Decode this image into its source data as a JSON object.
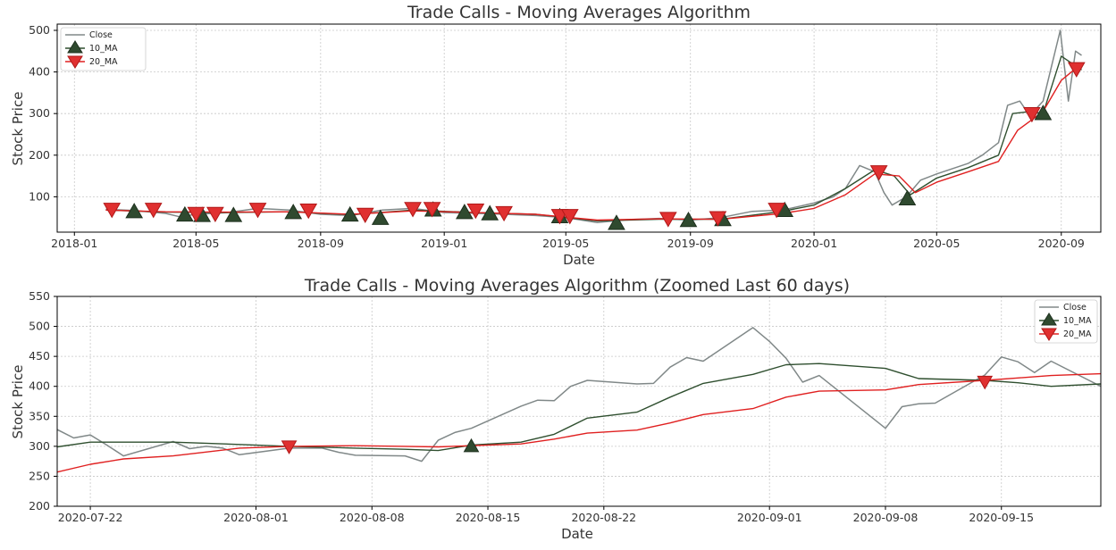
{
  "chart_data": [
    {
      "type": "line",
      "title": "Trade Calls - Moving Averages Algorithm",
      "xlabel": "Date",
      "ylabel": "Stock Price",
      "xlim": [
        "2017-12-15",
        "2020-10-10"
      ],
      "ylim": [
        15,
        515
      ],
      "x_ticks": [
        "2018-01",
        "2018-05",
        "2018-09",
        "2019-01",
        "2019-05",
        "2019-09",
        "2020-01",
        "2020-05",
        "2020-09"
      ],
      "y_ticks": [
        100,
        200,
        300,
        400,
        500
      ],
      "grid": true,
      "legend": "top-left",
      "colors": {
        "close": "#808888",
        "ma10": "#2f4f2f",
        "ma20": "#e02020",
        "buy_marker": "#2f4a2f",
        "sell_marker": "#e03030"
      },
      "series": [
        {
          "name": "Close",
          "x": [
            "2018-02-01",
            "2018-03-01",
            "2018-04-01",
            "2018-04-15",
            "2018-05-01",
            "2018-06-01",
            "2018-07-01",
            "2018-08-01",
            "2018-09-01",
            "2018-10-01",
            "2018-11-01",
            "2018-12-01",
            "2019-01-01",
            "2019-02-01",
            "2019-03-01",
            "2019-04-01",
            "2019-05-01",
            "2019-06-01",
            "2019-07-01",
            "2019-08-01",
            "2019-09-01",
            "2019-10-01",
            "2019-11-01",
            "2019-12-01",
            "2020-01-01",
            "2020-01-20",
            "2020-02-01",
            "2020-02-15",
            "2020-03-01",
            "2020-03-10",
            "2020-03-18",
            "2020-04-01",
            "2020-04-15",
            "2020-05-01",
            "2020-06-01",
            "2020-06-15",
            "2020-07-01",
            "2020-07-10",
            "2020-07-22",
            "2020-08-01",
            "2020-08-14",
            "2020-08-21",
            "2020-08-31",
            "2020-09-08",
            "2020-09-15",
            "2020-09-21"
          ],
          "values": [
            70,
            67,
            60,
            52,
            58,
            62,
            72,
            68,
            58,
            55,
            68,
            72,
            62,
            60,
            58,
            55,
            50,
            38,
            45,
            48,
            44,
            50,
            65,
            68,
            85,
            100,
            120,
            175,
            160,
            110,
            80,
            100,
            140,
            155,
            180,
            200,
            230,
            320,
            330,
            295,
            330,
            400,
            500,
            330,
            450,
            440
          ]
        },
        {
          "name": "10_MA",
          "x": [
            "2018-02-01",
            "2018-04-01",
            "2018-06-01",
            "2018-08-01",
            "2018-10-01",
            "2018-12-01",
            "2019-02-01",
            "2019-04-01",
            "2019-06-01",
            "2019-08-01",
            "2019-10-01",
            "2019-12-01",
            "2020-01-01",
            "2020-02-01",
            "2020-03-01",
            "2020-03-20",
            "2020-04-05",
            "2020-05-01",
            "2020-06-01",
            "2020-07-01",
            "2020-07-15",
            "2020-08-01",
            "2020-08-14",
            "2020-09-01",
            "2020-09-21"
          ],
          "values": [
            68,
            63,
            62,
            64,
            57,
            68,
            62,
            58,
            42,
            46,
            46,
            65,
            80,
            120,
            165,
            150,
            105,
            145,
            170,
            200,
            300,
            305,
            300,
            438,
            405
          ]
        },
        {
          "name": "20_MA",
          "x": [
            "2018-02-01",
            "2018-04-01",
            "2018-06-01",
            "2018-08-01",
            "2018-10-01",
            "2018-12-01",
            "2019-02-01",
            "2019-04-01",
            "2019-06-01",
            "2019-08-01",
            "2019-10-01",
            "2019-12-01",
            "2020-01-01",
            "2020-02-01",
            "2020-03-01",
            "2020-03-25",
            "2020-04-10",
            "2020-05-01",
            "2020-06-01",
            "2020-07-01",
            "2020-07-20",
            "2020-08-14",
            "2020-09-01",
            "2020-09-21"
          ],
          "values": [
            68,
            64,
            63,
            64,
            58,
            66,
            62,
            58,
            44,
            47,
            46,
            60,
            72,
            105,
            155,
            150,
            110,
            135,
            160,
            185,
            260,
            305,
            380,
            420
          ]
        }
      ],
      "buy_signals": {
        "name": "10_MA",
        "x": [
          "2018-03-01",
          "2018-04-20",
          "2018-05-07",
          "2018-06-07",
          "2018-08-05",
          "2018-09-30",
          "2018-10-30",
          "2018-12-21",
          "2019-01-21",
          "2019-02-15",
          "2019-04-25",
          "2019-06-20",
          "2019-08-30",
          "2019-10-03",
          "2019-12-03",
          "2020-04-02",
          "2020-08-14"
        ],
        "values": [
          64,
          56,
          55,
          55,
          62,
          56,
          48,
          68,
          62,
          59,
          52,
          36,
          43,
          45,
          67,
          95,
          300
        ]
      },
      "sell_signals": {
        "name": "20_MA",
        "x": [
          "2018-02-07",
          "2018-03-20",
          "2018-05-01",
          "2018-05-20",
          "2018-07-01",
          "2018-08-20",
          "2018-10-15",
          "2018-12-01",
          "2018-12-20",
          "2019-02-01",
          "2019-03-01",
          "2019-04-25",
          "2019-05-05",
          "2019-08-10",
          "2019-09-28",
          "2019-11-25",
          "2020-03-05",
          "2020-08-03",
          "2020-09-16"
        ],
        "values": [
          70,
          70,
          60,
          60,
          70,
          68,
          58,
          72,
          72,
          68,
          62,
          55,
          55,
          48,
          50,
          70,
          160,
          300,
          408
        ]
      }
    },
    {
      "type": "line",
      "title": "Trade Calls - Moving Averages Algorithm (Zoomed Last 60 days)",
      "xlabel": "Date",
      "ylabel": "Stock Price",
      "xlim": [
        "2020-07-20",
        "2020-09-21"
      ],
      "ylim": [
        200,
        550
      ],
      "x_ticks": [
        "2020-07-22",
        "2020-08-01",
        "2020-08-08",
        "2020-08-15",
        "2020-08-22",
        "2020-09-01",
        "2020-09-08",
        "2020-09-15"
      ],
      "y_ticks": [
        200,
        250,
        300,
        350,
        400,
        450,
        500,
        550
      ],
      "grid": true,
      "legend": "top-right",
      "colors": {
        "close": "#808888",
        "ma10": "#2f4f2f",
        "ma20": "#e02020",
        "buy_marker": "#2f4a2f",
        "sell_marker": "#e03030"
      },
      "series": [
        {
          "name": "Close",
          "x": [
            "2020-07-20",
            "2020-07-21",
            "2020-07-22",
            "2020-07-23",
            "2020-07-24",
            "2020-07-27",
            "2020-07-28",
            "2020-07-29",
            "2020-07-30",
            "2020-07-31",
            "2020-08-03",
            "2020-08-04",
            "2020-08-05",
            "2020-08-06",
            "2020-08-07",
            "2020-08-10",
            "2020-08-11",
            "2020-08-12",
            "2020-08-13",
            "2020-08-14",
            "2020-08-17",
            "2020-08-18",
            "2020-08-19",
            "2020-08-20",
            "2020-08-21",
            "2020-08-24",
            "2020-08-25",
            "2020-08-26",
            "2020-08-27",
            "2020-08-28",
            "2020-08-31",
            "2020-09-01",
            "2020-09-02",
            "2020-09-03",
            "2020-09-04",
            "2020-09-08",
            "2020-09-09",
            "2020-09-10",
            "2020-09-11",
            "2020-09-14",
            "2020-09-15",
            "2020-09-16",
            "2020-09-17",
            "2020-09-18",
            "2020-09-21"
          ],
          "values": [
            328,
            314,
            319,
            302,
            284,
            308,
            296,
            300,
            297,
            286,
            297,
            297,
            297,
            290,
            285,
            284,
            275,
            310,
            323,
            330,
            367,
            377,
            376,
            400,
            410,
            404,
            405,
            432,
            448,
            442,
            498,
            475,
            447,
            407,
            418,
            330,
            366,
            371,
            372,
            419,
            449,
            441,
            423,
            442,
            400
          ]
        },
        {
          "name": "10_MA",
          "x": [
            "2020-07-20",
            "2020-07-22",
            "2020-07-24",
            "2020-07-27",
            "2020-07-31",
            "2020-08-03",
            "2020-08-07",
            "2020-08-10",
            "2020-08-12",
            "2020-08-14",
            "2020-08-17",
            "2020-08-19",
            "2020-08-21",
            "2020-08-24",
            "2020-08-26",
            "2020-08-28",
            "2020-08-31",
            "2020-09-02",
            "2020-09-04",
            "2020-09-08",
            "2020-09-10",
            "2020-09-14",
            "2020-09-16",
            "2020-09-18",
            "2020-09-21"
          ],
          "values": [
            299,
            307,
            307,
            307,
            303,
            300,
            297,
            295,
            293,
            302,
            307,
            320,
            347,
            357,
            382,
            405,
            420,
            436,
            438,
            430,
            413,
            410,
            406,
            400,
            404
          ]
        },
        {
          "name": "20_MA",
          "x": [
            "2020-07-20",
            "2020-07-22",
            "2020-07-24",
            "2020-07-27",
            "2020-07-31",
            "2020-08-03",
            "2020-08-07",
            "2020-08-10",
            "2020-08-12",
            "2020-08-14",
            "2020-08-17",
            "2020-08-19",
            "2020-08-21",
            "2020-08-24",
            "2020-08-26",
            "2020-08-28",
            "2020-08-31",
            "2020-09-02",
            "2020-09-04",
            "2020-09-08",
            "2020-09-10",
            "2020-09-14",
            "2020-09-16",
            "2020-09-18",
            "2020-09-21"
          ],
          "values": [
            257,
            270,
            279,
            284,
            297,
            300,
            301,
            300,
            299,
            301,
            304,
            312,
            322,
            327,
            339,
            353,
            363,
            382,
            392,
            394,
            403,
            410,
            414,
            418,
            421
          ]
        }
      ],
      "buy_signals": {
        "name": "10_MA",
        "x": [
          "2020-08-14"
        ],
        "values": [
          300
        ]
      },
      "sell_signals": {
        "name": "20_MA",
        "x": [
          "2020-08-03",
          "2020-09-14"
        ],
        "values": [
          300,
          408
        ]
      }
    }
  ]
}
